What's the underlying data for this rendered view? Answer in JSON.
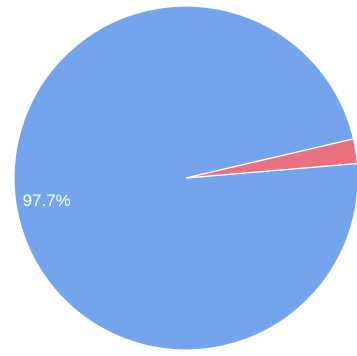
{
  "chart_data": {
    "type": "pie",
    "slices": [
      {
        "value": 97.7,
        "label": "97.7%",
        "color": "#74a5ec"
      },
      {
        "value": 2.3,
        "label": "",
        "color": "#ea7180"
      }
    ],
    "title": "",
    "legend": "none"
  }
}
